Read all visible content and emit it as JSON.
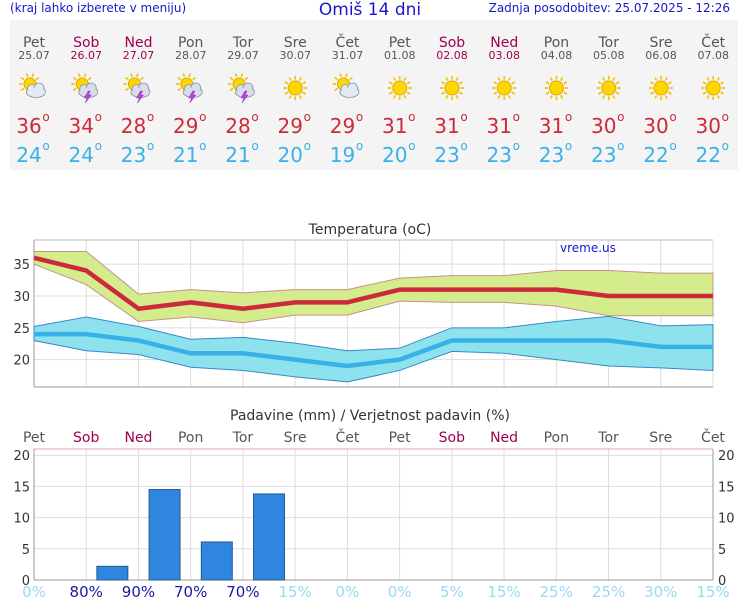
{
  "header": {
    "menu_hint": "(kraj lahko izberete v meniju)",
    "title": "Omiš 14 dni",
    "updated": "Zadnja posodobitev: 25.07.2025 - 12:26"
  },
  "days": [
    {
      "day": "Pet",
      "date": "25.07",
      "weekend": false,
      "icon": "sun-cloud-icon",
      "max": "36",
      "min": "24"
    },
    {
      "day": "Sob",
      "date": "26.07",
      "weekend": true,
      "icon": "thunderstorm-icon",
      "max": "34",
      "min": "24"
    },
    {
      "day": "Ned",
      "date": "27.07",
      "weekend": true,
      "icon": "thunderstorm-icon",
      "max": "28",
      "min": "23"
    },
    {
      "day": "Pon",
      "date": "28.07",
      "weekend": false,
      "icon": "thunderstorm-icon",
      "max": "29",
      "min": "21"
    },
    {
      "day": "Tor",
      "date": "29.07",
      "weekend": false,
      "icon": "thunderstorm-icon",
      "max": "28",
      "min": "21"
    },
    {
      "day": "Sre",
      "date": "30.07",
      "weekend": false,
      "icon": "sun-icon",
      "max": "29",
      "min": "20"
    },
    {
      "day": "Čet",
      "date": "31.07",
      "weekend": false,
      "icon": "sun-cloud-icon",
      "max": "29",
      "min": "19"
    },
    {
      "day": "Pet",
      "date": "01.08",
      "weekend": false,
      "icon": "sun-icon",
      "max": "31",
      "min": "20"
    },
    {
      "day": "Sob",
      "date": "02.08",
      "weekend": true,
      "icon": "sun-icon",
      "max": "31",
      "min": "23"
    },
    {
      "day": "Ned",
      "date": "03.08",
      "weekend": true,
      "icon": "sun-icon",
      "max": "31",
      "min": "23"
    },
    {
      "day": "Pon",
      "date": "04.08",
      "weekend": false,
      "icon": "sun-icon",
      "max": "31",
      "min": "23"
    },
    {
      "day": "Tor",
      "date": "05.08",
      "weekend": false,
      "icon": "sun-icon",
      "max": "30",
      "min": "23"
    },
    {
      "day": "Sre",
      "date": "06.08",
      "weekend": false,
      "icon": "sun-icon",
      "max": "30",
      "min": "22"
    },
    {
      "day": "Čet",
      "date": "07.08",
      "weekend": false,
      "icon": "sun-icon",
      "max": "30",
      "min": "22"
    }
  ],
  "degree_symbol": "o",
  "colors": {
    "weekday": "#555555",
    "weekend": "#a00050",
    "max_temp": "#cc2a3a",
    "min_temp": "#38b0e8",
    "title": "#1818c8",
    "max_band": "#d4ec8c",
    "min_band": "#8ee2ee",
    "bar": "#2e86e0"
  },
  "chart_data": [
    {
      "type": "line",
      "title": "Temperatura (oC)",
      "watermark": "vreme.us",
      "categories": [
        "Pet",
        "Sob",
        "Ned",
        "Pon",
        "Tor",
        "Sre",
        "Čet",
        "Pet",
        "Sob",
        "Ned",
        "Pon",
        "Tor",
        "Sre",
        "Čet"
      ],
      "series": [
        {
          "name": "max",
          "values": [
            36,
            34,
            28,
            29,
            28,
            29,
            29,
            31,
            31,
            31,
            31,
            30,
            30,
            30
          ]
        },
        {
          "name": "max_upper",
          "values": [
            37,
            37,
            30.3,
            31,
            30.5,
            31,
            31,
            32.8,
            33.2,
            33.2,
            34,
            34,
            33.6,
            33.6
          ]
        },
        {
          "name": "max_lower",
          "values": [
            35,
            31.8,
            26,
            26.7,
            25.8,
            27,
            27,
            29.2,
            29,
            29,
            28.4,
            26.9,
            26.9,
            26.9
          ]
        },
        {
          "name": "min",
          "values": [
            24,
            24,
            23,
            21,
            21,
            20,
            19,
            20,
            23,
            23,
            23,
            23,
            22,
            22
          ]
        },
        {
          "name": "min_upper",
          "values": [
            25.2,
            26.7,
            25.2,
            23.2,
            23.5,
            22.6,
            21.4,
            21.8,
            25,
            25,
            26,
            26.8,
            25.3,
            25.5
          ]
        },
        {
          "name": "min_lower",
          "values": [
            23,
            21.4,
            20.8,
            18.8,
            18.3,
            17.3,
            16.5,
            18.3,
            21.3,
            21,
            20,
            19,
            18.7,
            18.3
          ]
        }
      ],
      "ylim": [
        15.7,
        38.8
      ],
      "yticks": [
        20,
        25,
        30,
        35
      ]
    },
    {
      "type": "bar",
      "title": "Padavine (mm) / Verjetnost padavin (%)",
      "categories": [
        "Pet",
        "Sob",
        "Ned",
        "Pon",
        "Tor",
        "Sre",
        "Čet",
        "Pet",
        "Sob",
        "Ned",
        "Pon",
        "Tor",
        "Sre",
        "Čet"
      ],
      "values": [
        0,
        2.2,
        14.5,
        6.1,
        13.8,
        0,
        0,
        0,
        0,
        0,
        0,
        0,
        0,
        0
      ],
      "probability": [
        "0%",
        "80%",
        "90%",
        "70%",
        "70%",
        "15%",
        "0%",
        "0%",
        "5%",
        "15%",
        "25%",
        "25%",
        "30%",
        "15%"
      ],
      "ylim": [
        0,
        21
      ],
      "yticks": [
        0,
        5,
        10,
        15,
        20
      ]
    }
  ]
}
